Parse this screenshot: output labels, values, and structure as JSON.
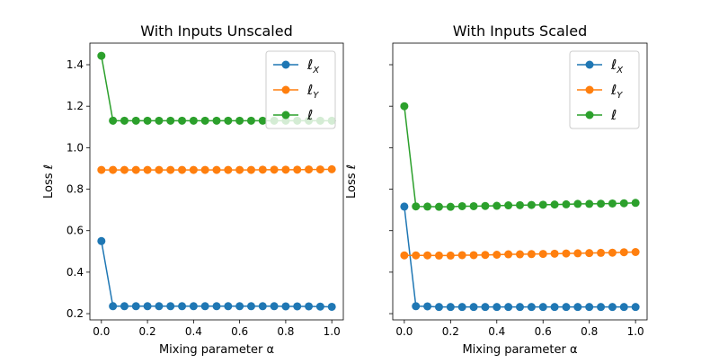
{
  "chart_data": [
    {
      "type": "line",
      "title": "With Inputs Unscaled",
      "xlabel": "Mixing parameter α",
      "ylabel": "Loss ℓ",
      "xlim": [
        -0.05,
        1.05
      ],
      "ylim": [
        0.17,
        1.504
      ],
      "xticks": [
        "0.0",
        "0.2",
        "0.4",
        "0.6",
        "0.8",
        "1.0"
      ],
      "yticks": [
        "0.2",
        "0.4",
        "0.6",
        "0.8",
        "1.0",
        "1.2",
        "1.4"
      ],
      "legend": "top-right",
      "x": [
        0,
        0.05,
        0.1,
        0.15,
        0.2,
        0.25,
        0.3,
        0.35,
        0.4,
        0.45,
        0.5,
        0.55,
        0.6,
        0.65,
        0.7,
        0.75,
        0.8,
        0.85,
        0.9,
        0.95,
        1.0
      ],
      "series": [
        {
          "name": "ℓX",
          "color": "#1f77b4",
          "values": [
            0.55,
            0.236,
            0.236,
            0.236,
            0.236,
            0.236,
            0.236,
            0.236,
            0.236,
            0.236,
            0.236,
            0.236,
            0.236,
            0.236,
            0.236,
            0.236,
            0.235,
            0.235,
            0.235,
            0.234,
            0.233
          ]
        },
        {
          "name": "ℓY",
          "color": "#ff7f0e",
          "values": [
            0.893,
            0.893,
            0.893,
            0.893,
            0.893,
            0.893,
            0.893,
            0.893,
            0.893,
            0.893,
            0.893,
            0.893,
            0.893,
            0.893,
            0.894,
            0.894,
            0.894,
            0.894,
            0.895,
            0.895,
            0.896
          ]
        },
        {
          "name": "ℓ",
          "color": "#2ca02c",
          "values": [
            1.443,
            1.13,
            1.13,
            1.13,
            1.13,
            1.13,
            1.13,
            1.13,
            1.13,
            1.13,
            1.13,
            1.13,
            1.13,
            1.13,
            1.13,
            1.13,
            1.13,
            1.13,
            1.13,
            1.13,
            1.13
          ]
        }
      ]
    },
    {
      "type": "line",
      "title": "With Inputs Scaled",
      "xlabel": "Mixing parameter α",
      "ylabel": "Loss ℓ",
      "xlim": [
        -0.05,
        1.05
      ],
      "ylim": [
        0.17,
        1.504
      ],
      "xticks": [
        "0.0",
        "0.2",
        "0.4",
        "0.6",
        "0.8",
        "1.0"
      ],
      "yticks": [],
      "legend": "top-right",
      "x": [
        0,
        0.05,
        0.1,
        0.15,
        0.2,
        0.25,
        0.3,
        0.35,
        0.4,
        0.45,
        0.5,
        0.55,
        0.6,
        0.65,
        0.7,
        0.75,
        0.8,
        0.85,
        0.9,
        0.95,
        1.0
      ],
      "series": [
        {
          "name": "ℓX",
          "color": "#1f77b4",
          "values": [
            0.716,
            0.236,
            0.235,
            0.232,
            0.232,
            0.232,
            0.232,
            0.232,
            0.232,
            0.232,
            0.232,
            0.232,
            0.232,
            0.232,
            0.232,
            0.232,
            0.232,
            0.232,
            0.232,
            0.232,
            0.232
          ]
        },
        {
          "name": "ℓY",
          "color": "#ff7f0e",
          "values": [
            0.481,
            0.481,
            0.481,
            0.48,
            0.48,
            0.482,
            0.482,
            0.483,
            0.484,
            0.486,
            0.486,
            0.487,
            0.488,
            0.489,
            0.49,
            0.491,
            0.492,
            0.493,
            0.494,
            0.496,
            0.497
          ]
        },
        {
          "name": "ℓ",
          "color": "#2ca02c",
          "values": [
            1.2,
            0.717,
            0.716,
            0.715,
            0.715,
            0.718,
            0.718,
            0.719,
            0.72,
            0.722,
            0.723,
            0.724,
            0.725,
            0.726,
            0.727,
            0.729,
            0.729,
            0.73,
            0.731,
            0.732,
            0.734
          ]
        }
      ]
    }
  ]
}
